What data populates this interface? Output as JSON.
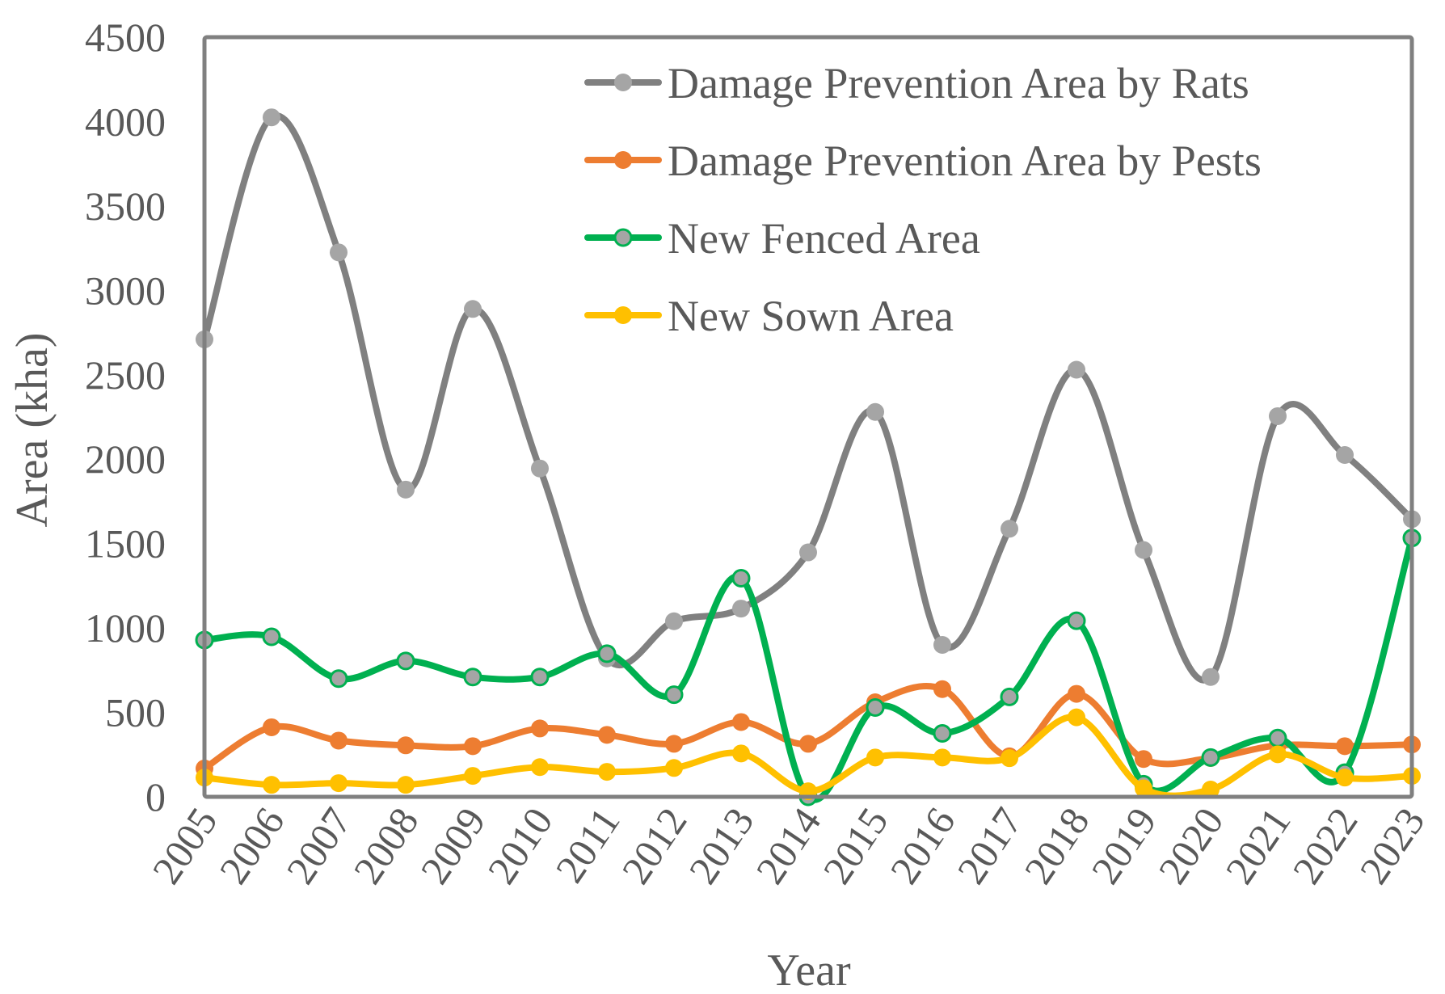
{
  "chart_data": {
    "type": "line",
    "title": "",
    "xlabel": "Year",
    "ylabel": "Area (kha)",
    "ylim": [
      0,
      4500
    ],
    "yticks": [
      0,
      500,
      1000,
      1500,
      2000,
      2500,
      3000,
      3500,
      4000,
      4500
    ],
    "ytick_labels": [
      "0",
      "500",
      "1000",
      "1500",
      "2000",
      "2500",
      "3000",
      "3500",
      "4000",
      "4500"
    ],
    "grid": false,
    "smooth": true,
    "legend_position": "top-right",
    "x": [
      "2005",
      "2006",
      "2007",
      "2008",
      "2009",
      "2010",
      "2011",
      "2012",
      "2013",
      "2014",
      "2015",
      "2016",
      "2017",
      "2018",
      "2019",
      "2020",
      "2021",
      "2022",
      "2023"
    ],
    "series": [
      {
        "name": "Damage Prevention Area by Rats",
        "line_color": "#808080",
        "marker_fill": "#A5A5A5",
        "marker_edge": "#A5A5A5",
        "values": [
          2710,
          4025,
          3225,
          1820,
          2890,
          1945,
          820,
          1040,
          1115,
          1448,
          2280,
          900,
          1588,
          2530,
          1462,
          710,
          2255,
          2025,
          1645
        ]
      },
      {
        "name": "Damage Prevention Area by Pests",
        "line_color": "#ED7D31",
        "marker_fill": "#ED7D31",
        "marker_edge": "#ED7D31",
        "values": [
          168,
          412,
          333,
          305,
          300,
          405,
          367,
          314,
          443,
          314,
          560,
          638,
          240,
          610,
          224,
          230,
          305,
          300,
          310
        ]
      },
      {
        "name": "New Fenced Area",
        "line_color": "#00B050",
        "marker_fill": "#A5A5A5",
        "marker_edge": "#00B050",
        "values": [
          929,
          948,
          700,
          805,
          710,
          710,
          848,
          605,
          1295,
          0,
          529,
          376,
          592,
          1043,
          75,
          233,
          348,
          143,
          1533
        ]
      },
      {
        "name": "New Sown Area",
        "line_color": "#FFC000",
        "marker_fill": "#FFC000",
        "marker_edge": "#FFC000",
        "values": [
          114,
          71,
          81,
          71,
          124,
          176,
          148,
          171,
          257,
          33,
          233,
          233,
          229,
          471,
          50,
          43,
          252,
          114,
          124
        ]
      }
    ]
  },
  "colors": {
    "axis": "#808080",
    "text": "#595959",
    "background": "#FFFFFF"
  }
}
